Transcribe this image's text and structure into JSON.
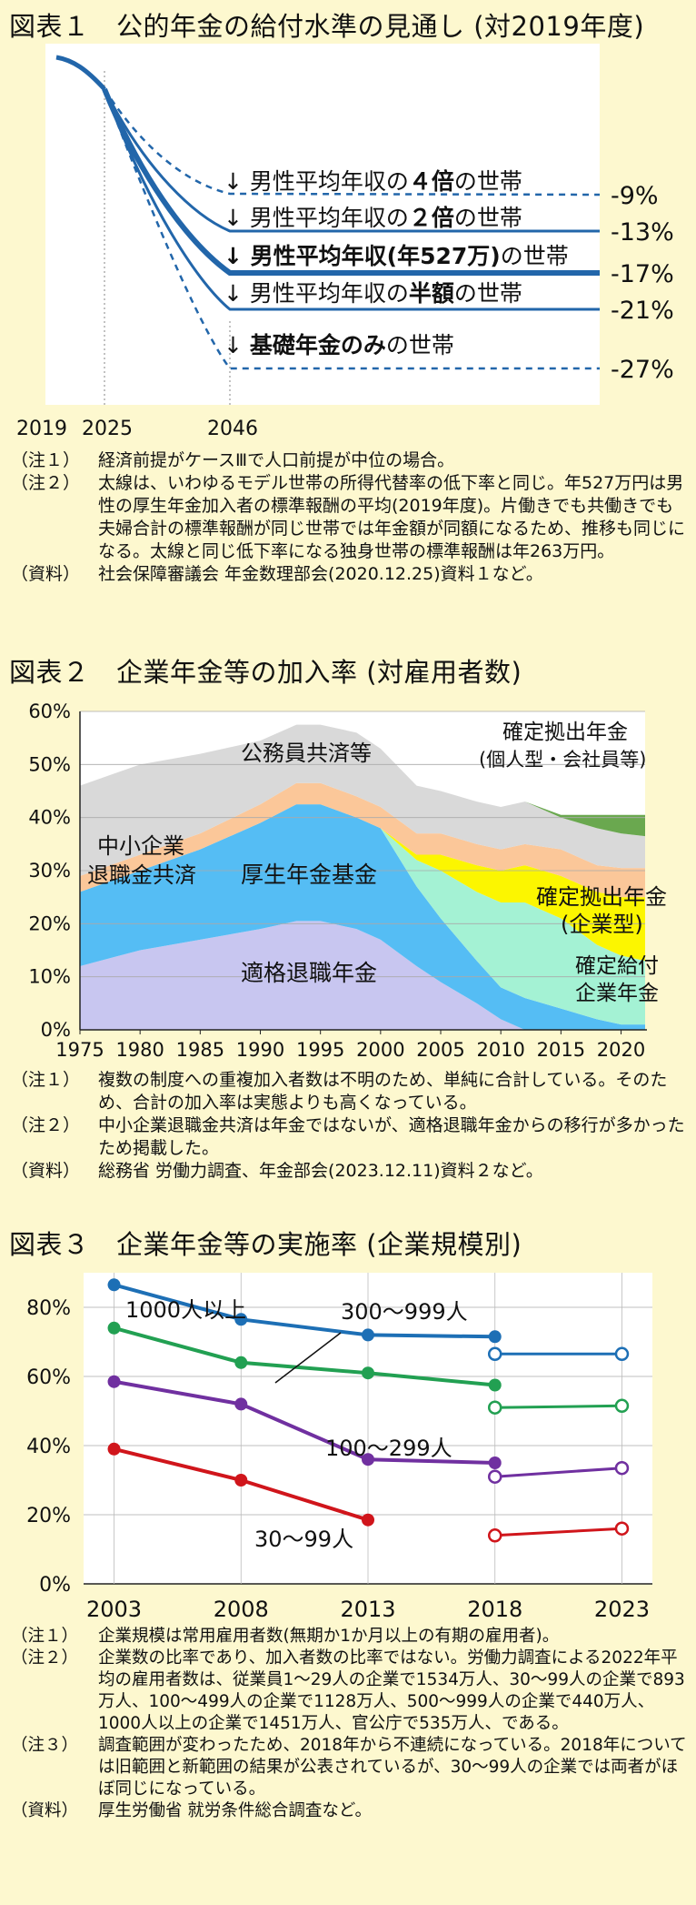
{
  "fig1": {
    "title": "図表１　公的年金の給付水準の見通し (対2019年度)",
    "years": [
      "2019",
      "2025",
      "2046"
    ],
    "labels": [
      {
        "text": "↓ 男性平均年収の４倍の世帯",
        "pct": "-9%"
      },
      {
        "text": "↓ 男性平均年収の２倍の世帯",
        "pct": "-13%"
      },
      {
        "text": "↓ 男性平均年収(年527万)の世帯",
        "pct": "-17%"
      },
      {
        "text": "↓ 男性平均年収の半額の世帯",
        "pct": "-21%"
      },
      {
        "text": "↓ 基礎年金のみの世帯",
        "pct": "-27%"
      }
    ],
    "notes": [
      {
        "tag": "（注１）",
        "text": "経済前提がケースⅢで人口前提が中位の場合。"
      },
      {
        "tag": "（注２）",
        "text": "太線は、いわゆるモデル世帯の所得代替率の低下率と同じ。年527万円は男性の厚生年金加入者の標準報酬の平均(2019年度)。片働きでも共働きでも夫婦合計の標準報酬が同じ世帯では年金額が同額になるため、推移も同じになる。太線と同じ低下率になる独身世帯の標準報酬は年263万円。"
      },
      {
        "tag": "（資料）",
        "text": "社会保障審議会 年金数理部会(2020.12.25)資料１など。"
      }
    ]
  },
  "fig2": {
    "title": "図表２　企業年金等の加入率 (対雇用者数)",
    "y_ticks": [
      "60%",
      "50%",
      "40%",
      "30%",
      "20%",
      "10%",
      "0%"
    ],
    "x_ticks": [
      "1975",
      "1980",
      "1985",
      "1990",
      "1995",
      "2000",
      "2005",
      "2010",
      "2015",
      "2020"
    ],
    "area_labels": [
      "確定拠出年金",
      "(個人型・会社員等)",
      "公務員共済等",
      "中小企業",
      "退職金共済",
      "厚生年金基金",
      "確定拠出年金",
      "(企業型)",
      "確定給付",
      "企業年金",
      "適格退職年金"
    ],
    "notes": [
      {
        "tag": "（注１）",
        "text": "複数の制度への重複加入者数は不明のため、単純に合計している。そのため、合計の加入率は実態よりも高くなっている。"
      },
      {
        "tag": "（注２）",
        "text": "中小企業退職金共済は年金ではないが、適格退職年金からの移行が多かったため掲載した。"
      },
      {
        "tag": "（資料）",
        "text": "総務省 労働力調査、年金部会(2023.12.11)資料２など。"
      }
    ]
  },
  "fig3": {
    "title": "図表３　企業年金等の実施率 (企業規模別)",
    "notes": [
      {
        "tag": "（注１）",
        "text": "企業規模は常用雇用者数(無期か1か月以上の有期の雇用者)。"
      },
      {
        "tag": "（注２）",
        "text": "企業数の比率であり、加入者数の比率ではない。労働力調査による2022年平均の雇用者数は、従業員1～29人の企業で1534万人、30～99人の企業で893万人、100～499人の企業で1128万人、500～999人の企業で440万人、1000人以上の企業で1451万人、官公庁で535万人、である。"
      },
      {
        "tag": "（注３）",
        "text": "調査範囲が変わったため、2018年から不連続になっている。2018年については旧範囲と新範囲の結果が公表されているが、30～99人の企業では両者がほぼ同じになっている。"
      },
      {
        "tag": "（資料）",
        "text": "厚生労働省 就労条件総合調査など。"
      }
    ]
  },
  "chart_data": [
    {
      "type": "line",
      "title": "図表１　公的年金の給付水準の見通し (対2019年度)",
      "x_ticks": [
        "2019",
        "2025",
        "2046"
      ],
      "series": [
        {
          "name": "男性平均年収の４倍の世帯",
          "end_change_pct": -9
        },
        {
          "name": "男性平均年収の２倍の世帯",
          "end_change_pct": -13
        },
        {
          "name": "男性平均年収(年527万)の世帯",
          "end_change_pct": -17
        },
        {
          "name": "男性平均年収の半額の世帯",
          "end_change_pct": -21
        },
        {
          "name": "基礎年金のみの世帯",
          "end_change_pct": -27
        }
      ]
    },
    {
      "type": "area",
      "title": "図表２　企業年金等の加入率 (対雇用者数)",
      "x": [
        1975,
        1980,
        1985,
        1990,
        1993,
        1995,
        1998,
        2000,
        2003,
        2005,
        2008,
        2010,
        2012,
        2015,
        2018,
        2020,
        2022
      ],
      "ylim": [
        0,
        60
      ],
      "series": [
        {
          "name": "適格退職年金",
          "values": [
            12,
            15,
            17,
            19,
            20.5,
            20.5,
            19,
            17,
            12,
            9,
            5,
            2,
            0,
            0,
            0,
            0,
            0
          ]
        },
        {
          "name": "厚生年金基金",
          "values": [
            14,
            15,
            17,
            20,
            22,
            22,
            21,
            21,
            15,
            12,
            8,
            6,
            6,
            4,
            2,
            1,
            1
          ]
        },
        {
          "name": "確定給付企業年金",
          "values": [
            0,
            0,
            0,
            0,
            0,
            0,
            0,
            0,
            5,
            9,
            13,
            16,
            18,
            17,
            14,
            13,
            12
          ]
        },
        {
          "name": "確定拠出年金(企業型)",
          "values": [
            0,
            0,
            0,
            0,
            0,
            0,
            0,
            0,
            1,
            3,
            5,
            6,
            7,
            8,
            10,
            11,
            12
          ]
        },
        {
          "name": "中小企業退職金共済",
          "values": [
            3,
            3,
            3,
            3.5,
            4,
            4,
            4,
            4,
            4,
            4,
            4,
            4,
            4,
            5,
            5,
            5.5,
            5.5
          ]
        },
        {
          "name": "公務員共済等",
          "values": [
            17,
            17,
            15,
            12,
            11,
            11,
            12,
            11,
            9,
            8,
            8,
            8,
            8,
            6,
            7,
            6.5,
            6
          ]
        },
        {
          "name": "確定拠出年金(個人型・会社員等)",
          "values": [
            0,
            0,
            0,
            0,
            0,
            0,
            0,
            0,
            0,
            0,
            0,
            0,
            0,
            0.5,
            2.5,
            3.5,
            4
          ]
        }
      ]
    },
    {
      "type": "line",
      "title": "図表３　企業年金等の実施率 (企業規模別)",
      "x": [
        2003,
        2008,
        2013,
        2018,
        2023
      ],
      "y_ticks": [
        "0%",
        "20%",
        "40%",
        "60%",
        "80%"
      ],
      "ylim": [
        0,
        90
      ],
      "series": [
        {
          "name": "1000人以上",
          "color": "#1d6fb5",
          "values": [
            86.5,
            76.5,
            72,
            71.5,
            null
          ],
          "new_range": [
            66.5,
            66.5
          ]
        },
        {
          "name": "300～999人",
          "color": "#22a052",
          "values": [
            74,
            64,
            61,
            57.5,
            null
          ],
          "new_range": [
            51,
            51.5
          ]
        },
        {
          "name": "100～299人",
          "color": "#7030a0",
          "values": [
            58.5,
            52,
            36,
            35,
            null
          ],
          "new_range": [
            31,
            33.5
          ]
        },
        {
          "name": "30～99人",
          "color": "#d0151b",
          "values": [
            39,
            30,
            18.5,
            null,
            null
          ],
          "new_range": [
            14,
            16
          ]
        }
      ],
      "new_range_x": [
        2018,
        2023
      ]
    }
  ]
}
